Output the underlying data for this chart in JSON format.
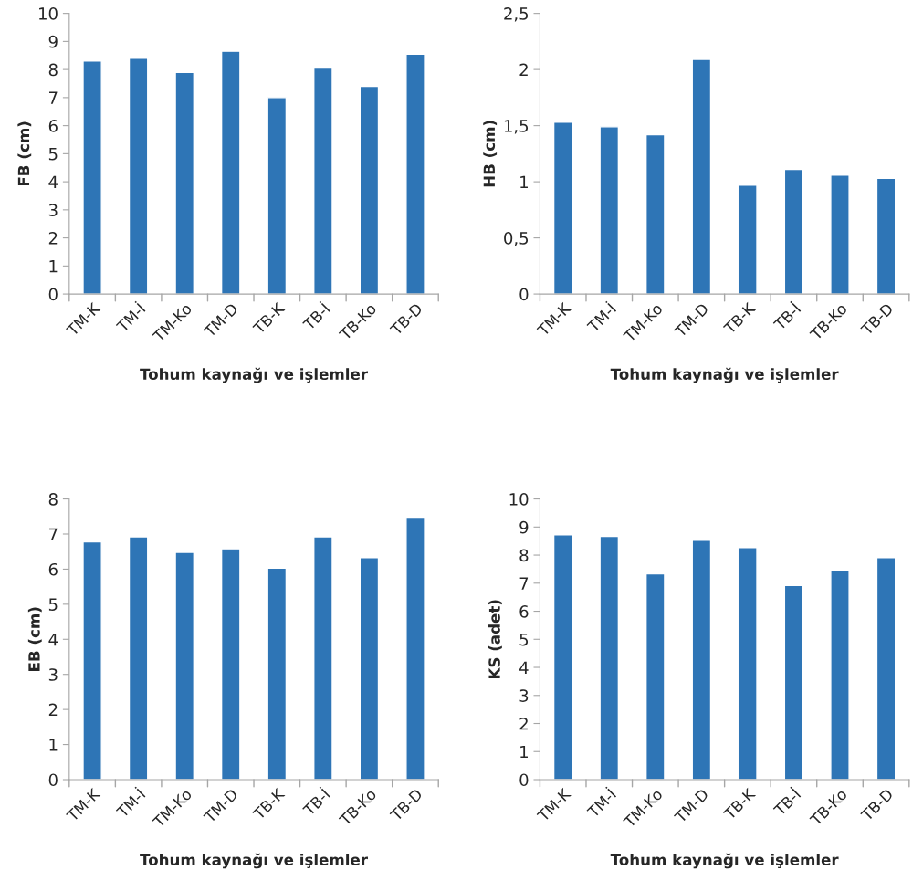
{
  "chart_data": [
    {
      "type": "bar",
      "xlabel": "Tohum kaynağı ve işlemler",
      "ylabel": "FB (cm)",
      "categories": [
        "TM-K",
        "TM-İ",
        "TM-Ko",
        "TM-D",
        "TB-K",
        "TB-İ",
        "TB-Ko",
        "TB-D"
      ],
      "values": [
        8.3,
        8.4,
        7.9,
        8.65,
        7.0,
        8.05,
        7.4,
        8.55
      ],
      "color": "#2e75b6",
      "ylim": [
        0,
        10
      ],
      "yticks": [
        0,
        1,
        2,
        3,
        4,
        5,
        6,
        7,
        8,
        9,
        10
      ],
      "grid": false,
      "legend": false
    },
    {
      "type": "bar",
      "xlabel": "Tohum kaynağı ve işlemler",
      "ylabel": "HB (cm)",
      "categories": [
        "TM-K",
        "TM-İ",
        "TM-Ko",
        "TM-D",
        "TB-K",
        "TB-İ",
        "TB-Ko",
        "TB-D"
      ],
      "values": [
        1.53,
        1.49,
        1.42,
        2.09,
        0.97,
        1.11,
        1.06,
        1.03
      ],
      "color": "#2e75b6",
      "ylim": [
        0,
        2.5
      ],
      "yticks": [
        0,
        {
          "value": 0.5,
          "label": "0,5"
        },
        1,
        {
          "value": 1.5,
          "label": "1,5"
        },
        2,
        {
          "value": 2.5,
          "label": "2,5"
        }
      ],
      "grid": false,
      "legend": false
    },
    {
      "type": "bar",
      "xlabel": "Tohum kaynağı ve işlemler",
      "ylabel": "EB (cm)",
      "categories": [
        "TM-K",
        "TM-İ",
        "TM-Ko",
        "TM-D",
        "TB-K",
        "TB-İ",
        "TB-Ko",
        "TB-D"
      ],
      "values": [
        6.78,
        6.92,
        6.48,
        6.58,
        6.03,
        6.92,
        6.33,
        7.48
      ],
      "color": "#2e75b6",
      "ylim": [
        0,
        8
      ],
      "yticks": [
        0,
        1,
        2,
        3,
        4,
        5,
        6,
        7,
        8
      ],
      "grid": false,
      "legend": false
    },
    {
      "type": "bar",
      "xlabel": "Tohum kaynağı ve işlemler",
      "ylabel": "KS (adet)",
      "categories": [
        "TM-K",
        "TM-İ",
        "TM-Ko",
        "TM-D",
        "TB-K",
        "TB-İ",
        "TB-Ko",
        "TB-D"
      ],
      "values": [
        8.72,
        8.67,
        7.33,
        8.53,
        8.27,
        6.92,
        7.46,
        7.91
      ],
      "color": "#2e75b6",
      "ylim": [
        0,
        10
      ],
      "yticks": [
        0,
        1,
        2,
        3,
        4,
        5,
        6,
        7,
        8,
        9,
        10
      ],
      "grid": false,
      "legend": false
    }
  ]
}
